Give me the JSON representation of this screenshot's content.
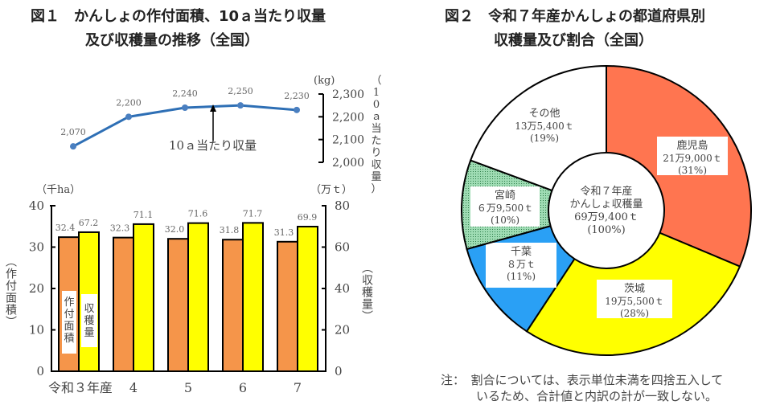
{
  "fig1": {
    "title_line1": "図１　かんしょの作付面積、10ａ当たり収量",
    "title_line2": "及び収穫量の推移（全国）"
  },
  "fig2": {
    "title_line1": "図２　令和７年産かんしょの都道府県別",
    "title_line2": "収穫量及び割合（全国）"
  },
  "note": {
    "line1": "注：　割合については、表示単位未満を四捨五入して",
    "line2": "いるため、合計値と内訳の計が一致しない。"
  },
  "chart_data": [
    {
      "type": "line",
      "series": [
        {
          "name": "10ａ当たり収量",
          "values": [
            2070,
            2200,
            2240,
            2250,
            2230
          ]
        }
      ],
      "categories": [
        "令和３年産",
        "4",
        "5",
        "6",
        "7"
      ],
      "data_labels": [
        "2,070",
        "2,200",
        "2,240",
        "2,250",
        "2,230"
      ],
      "unit": "(kg)",
      "ylabel": "（10ａ当たり収量）",
      "ylim": [
        2000,
        2300
      ],
      "yticks": [
        "2,000",
        "2,100",
        "2,200",
        "2,300"
      ],
      "annotation": "10ａ当たり収量",
      "color": "#2e6fb5"
    },
    {
      "type": "bar",
      "categories": [
        "令和３年産",
        "4",
        "5",
        "6",
        "7"
      ],
      "series": [
        {
          "name": "作付面積",
          "values": [
            32.4,
            32.3,
            32.0,
            31.8,
            31.3
          ],
          "labels": [
            "32.4",
            "32.3",
            "32.0",
            "31.8",
            "31.3"
          ],
          "color": "#f5954a",
          "axis": "left"
        },
        {
          "name": "収穫量",
          "values": [
            67.2,
            71.1,
            71.6,
            71.7,
            69.9
          ],
          "labels": [
            "67.2",
            "71.1",
            "71.6",
            "71.7",
            "69.9"
          ],
          "color": "#ffff00",
          "axis": "right"
        }
      ],
      "ylabel_left": "（作付面積）",
      "unit_left": "（千ha）",
      "ylim_left": [
        0,
        40
      ],
      "yticks_left": [
        "0",
        "10",
        "20",
        "30",
        "40"
      ],
      "ylabel_right": "（収穫量）",
      "unit_right": "（万ｔ）",
      "ylim_right": [
        0,
        80
      ],
      "yticks_right": [
        "0",
        "20",
        "40",
        "60",
        "80"
      ]
    },
    {
      "type": "pie",
      "donut": true,
      "center_label": [
        "令和７年産",
        "かんしょ収穫量",
        "69万9,400ｔ",
        "(100%)"
      ],
      "slices": [
        {
          "name": "鹿児島",
          "value": 219000,
          "amount": "21万9,000ｔ",
          "pct": "(31%)",
          "color": "#ff7550"
        },
        {
          "name": "茨城",
          "value": 195500,
          "amount": "19万5,500ｔ",
          "pct": "(28%)",
          "color": "#ffff00"
        },
        {
          "name": "千葉",
          "value": 80000,
          "amount": "８万ｔ",
          "pct": "(11%)",
          "color": "#2aa0f5"
        },
        {
          "name": "宮崎",
          "value": 69500,
          "amount": "６万9,500ｔ",
          "pct": "(10%)",
          "color": "#8fd4a8"
        },
        {
          "name": "その他",
          "value": 135400,
          "amount": "13万5,400ｔ",
          "pct": "(19%)",
          "color": "#ffffff"
        }
      ]
    }
  ]
}
